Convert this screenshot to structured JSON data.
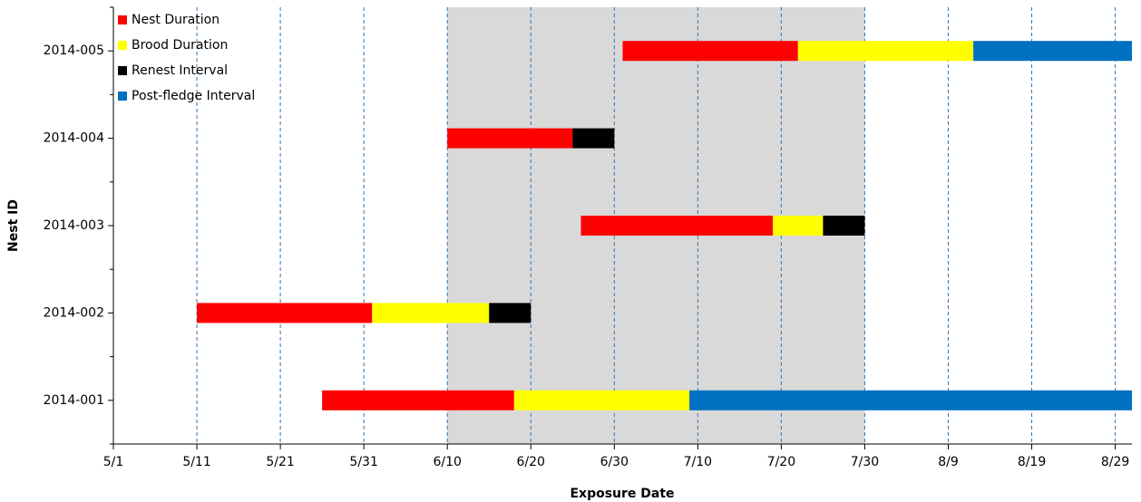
{
  "chart_data": {
    "type": "gantt",
    "x_label": "Exposure Date",
    "y_label": "Nest ID",
    "categories": [
      "2014-001",
      "2014-002",
      "2014-003",
      "2014-004",
      "2014-005"
    ],
    "start": [
      146,
      131,
      177,
      161,
      182
    ],
    "series": [
      {
        "name": "Nest Duration",
        "color": "#ff0000",
        "values": [
          23,
          21,
          23,
          15,
          21
        ]
      },
      {
        "name": "Brood Duration",
        "color": "#ffff00",
        "values": [
          21,
          14,
          6,
          null,
          21
        ]
      },
      {
        "name": "Renest Interval",
        "color": "#000000",
        "values": [
          null,
          5,
          5,
          5,
          null
        ]
      },
      {
        "name": "Post-fledge Interval",
        "color": "#0070c0",
        "values": [
          53,
          null,
          null,
          null,
          19
        ]
      }
    ],
    "shaded_range": [
      161,
      211
    ],
    "xlim": [
      121,
      243
    ],
    "xticks": [
      {
        "value": 121,
        "label": "5/1"
      },
      {
        "value": 131,
        "label": "5/11"
      },
      {
        "value": 141,
        "label": "5/21"
      },
      {
        "value": 151,
        "label": "5/31"
      },
      {
        "value": 161,
        "label": "6/10"
      },
      {
        "value": 171,
        "label": "6/20"
      },
      {
        "value": 181,
        "label": "6/30"
      },
      {
        "value": 191,
        "label": "7/10"
      },
      {
        "value": 201,
        "label": "7/20"
      },
      {
        "value": 211,
        "label": "7/30"
      },
      {
        "value": 221,
        "label": "8/9"
      },
      {
        "value": 231,
        "label": "8/19"
      },
      {
        "value": 241,
        "label": "8/29"
      }
    ],
    "grid": true,
    "legend": "top-left"
  }
}
